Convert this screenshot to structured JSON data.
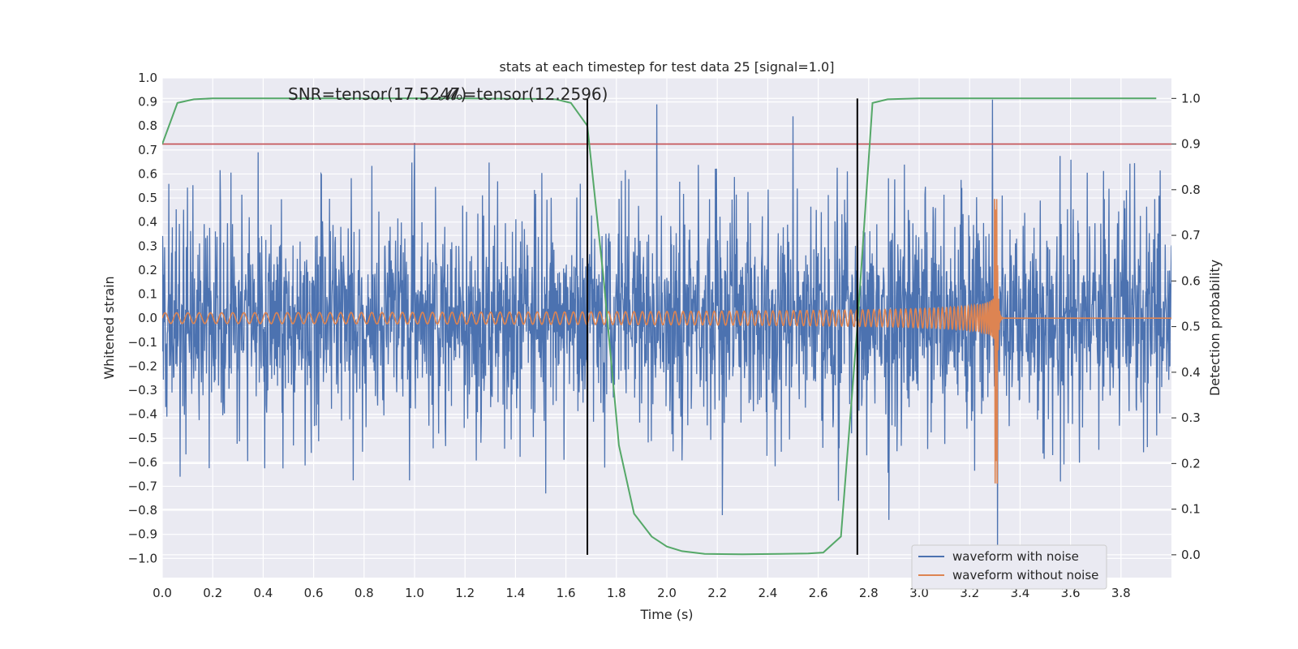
{
  "chart_data": {
    "type": "line",
    "title": "stats at each timestep for test data 25 [signal=1.0]",
    "xlabel": "Time (s)",
    "ylabel_left": "Whitened strain",
    "ylabel_right": "Detection probability",
    "xlim": [
      0.0,
      4.0
    ],
    "ylim_left": [
      -1.08,
      1.0
    ],
    "ylim_right": [
      -0.05,
      1.045
    ],
    "x_ticks": [
      "0.0",
      "0.2",
      "0.4",
      "0.6",
      "0.8",
      "1.0",
      "1.2",
      "1.4",
      "1.6",
      "1.8",
      "2.0",
      "2.2",
      "2.4",
      "2.6",
      "2.8",
      "3.0",
      "3.2",
      "3.4",
      "3.6",
      "3.8"
    ],
    "y_ticks_left": [
      "1.0",
      "0.9",
      "0.8",
      "0.7",
      "0.6",
      "0.5",
      "0.4",
      "0.3",
      "0.2",
      "0.1",
      "0.0",
      "−0.1",
      "−0.2",
      "−0.3",
      "−0.4",
      "−0.5",
      "−0.6",
      "−0.7",
      "−0.8",
      "−0.9",
      "−1.0"
    ],
    "y_ticks_right": [
      "1.0",
      "0.9",
      "0.8",
      "0.7",
      "0.6",
      "0.5",
      "0.4",
      "0.3",
      "0.2",
      "0.1",
      "0.0"
    ],
    "grid": true,
    "legend_position": "lower-right",
    "annotations": [
      "SNR=tensor(17.5247)",
      "𝓜ₒ=tensor(12.2596)"
    ],
    "threshold": {
      "axis": "right",
      "y": 0.9,
      "color": "#c44e52"
    },
    "vlines": [
      1.685,
      2.755
    ],
    "series": [
      {
        "name": "waveform with noise",
        "axis": "left",
        "color": "#4c72b0",
        "style": "noise",
        "amplitude": 0.9,
        "extremes": [
          [
            0.07,
            -0.66
          ],
          [
            0.38,
            0.69
          ],
          [
            0.52,
            -0.53
          ],
          [
            1.0,
            0.73
          ],
          [
            1.52,
            -0.73
          ],
          [
            1.96,
            0.89
          ],
          [
            2.22,
            -0.82
          ],
          [
            2.5,
            0.84
          ],
          [
            2.68,
            -0.76
          ],
          [
            2.88,
            -0.84
          ],
          [
            3.29,
            0.91
          ],
          [
            3.31,
            -1.0
          ],
          [
            3.56,
            -0.68
          ]
        ]
      },
      {
        "name": "waveform without noise",
        "axis": "left",
        "color": "#dd8452",
        "style": "chirp",
        "merger_time": 3.31,
        "peak_amplitude": [
          0.51,
          -0.69
        ]
      },
      {
        "name": "Detection probability",
        "axis": "right",
        "color": "#55a868",
        "x": [
          0.0,
          0.06,
          0.125,
          0.2,
          0.4,
          0.8,
          1.2,
          1.5,
          1.56,
          1.62,
          1.685,
          1.75,
          1.81,
          1.87,
          1.94,
          2.0,
          2.06,
          2.15,
          2.3,
          2.45,
          2.56,
          2.62,
          2.69,
          2.755,
          2.815,
          2.875,
          3.0,
          3.5,
          3.94
        ],
        "y": [
          0.9,
          0.99,
          0.998,
          1.0,
          1.0,
          1.0,
          1.0,
          0.999,
          0.998,
          0.99,
          0.94,
          0.6,
          0.24,
          0.09,
          0.04,
          0.018,
          0.008,
          0.002,
          0.001,
          0.002,
          0.003,
          0.005,
          0.04,
          0.5,
          0.99,
          0.998,
          1.0,
          1.0,
          1.0
        ]
      }
    ]
  }
}
